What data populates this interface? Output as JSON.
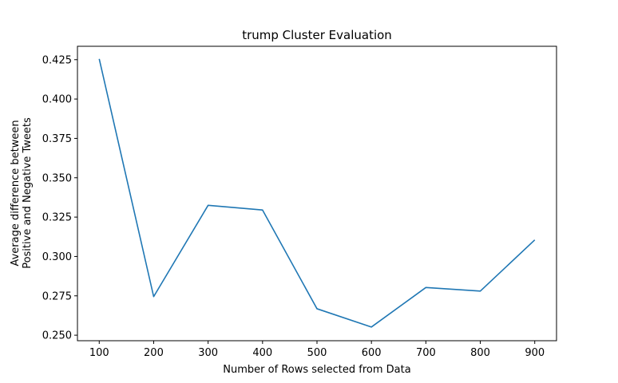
{
  "chart_data": {
    "type": "line",
    "title": "trump Cluster Evaluation",
    "xlabel": "Number of Rows selected from Data",
    "ylabel_lines": [
      "Average difference between",
      "Positive and Negative Tweets"
    ],
    "x": [
      100,
      200,
      300,
      400,
      500,
      600,
      700,
      800,
      900
    ],
    "series": [
      {
        "values": [
          0.4255,
          0.2745,
          0.3325,
          0.3295,
          0.2668,
          0.2552,
          0.2803,
          0.278,
          0.3105
        ],
        "color": "#1f77b4"
      }
    ],
    "xlim": [
      60,
      940
    ],
    "ylim": [
      0.2465,
      0.4335
    ],
    "x_ticks": [
      100,
      200,
      300,
      400,
      500,
      600,
      700,
      800,
      900
    ],
    "x_tick_labels": [
      "100",
      "200",
      "300",
      "400",
      "500",
      "600",
      "700",
      "800",
      "900"
    ],
    "y_ticks": [
      0.25,
      0.275,
      0.3,
      0.325,
      0.35,
      0.375,
      0.4,
      0.425
    ],
    "y_tick_labels": [
      "0.250",
      "0.275",
      "0.300",
      "0.325",
      "0.350",
      "0.375",
      "0.400",
      "0.425"
    ],
    "grid": false,
    "legend": "none"
  }
}
